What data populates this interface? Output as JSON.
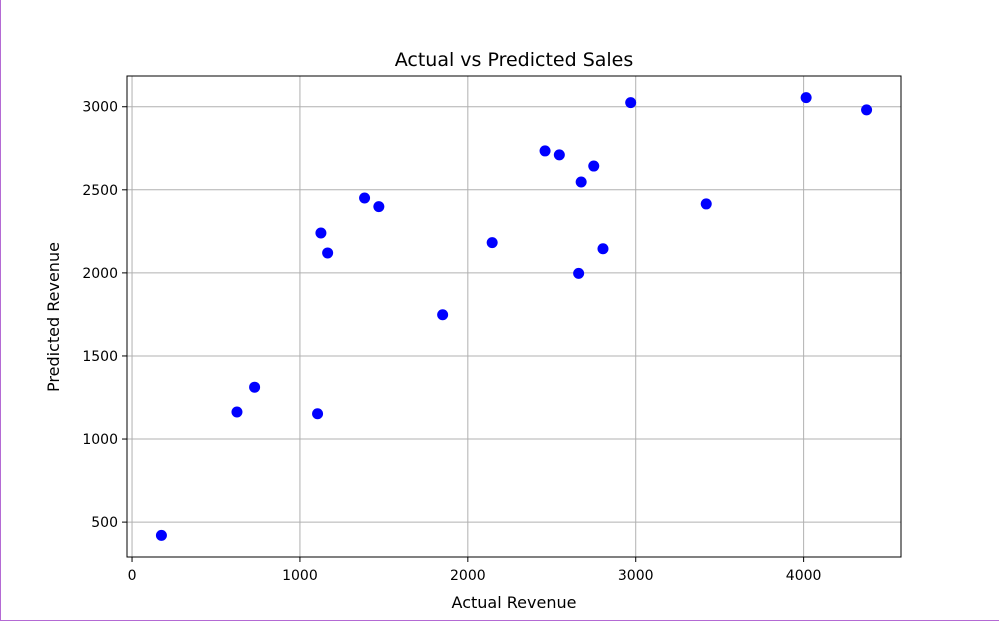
{
  "chart_data": {
    "type": "scatter",
    "title": "Actual vs Predicted Sales",
    "xlabel": "Actual Revenue",
    "ylabel": "Predicted Revenue",
    "xlim": [
      -30,
      4580
    ],
    "ylim": [
      290,
      3185
    ],
    "xticks": [
      0,
      1000,
      2000,
      3000,
      4000
    ],
    "yticks": [
      500,
      1000,
      1500,
      2000,
      2500,
      3000
    ],
    "grid": true,
    "series": [
      {
        "color": "#0000ff",
        "x": [
          175,
          625,
          730,
          1105,
          1125,
          1165,
          1385,
          1470,
          1850,
          2145,
          2460,
          2545,
          2660,
          2675,
          2750,
          2805,
          2970,
          3420,
          4015,
          4375
        ],
        "y": [
          420,
          1163,
          1312,
          1152,
          2240,
          2120,
          2451,
          2399,
          1748,
          2182,
          2734,
          2710,
          1997,
          2547,
          2643,
          2145,
          3025,
          2415,
          3055,
          2981
        ]
      }
    ]
  }
}
